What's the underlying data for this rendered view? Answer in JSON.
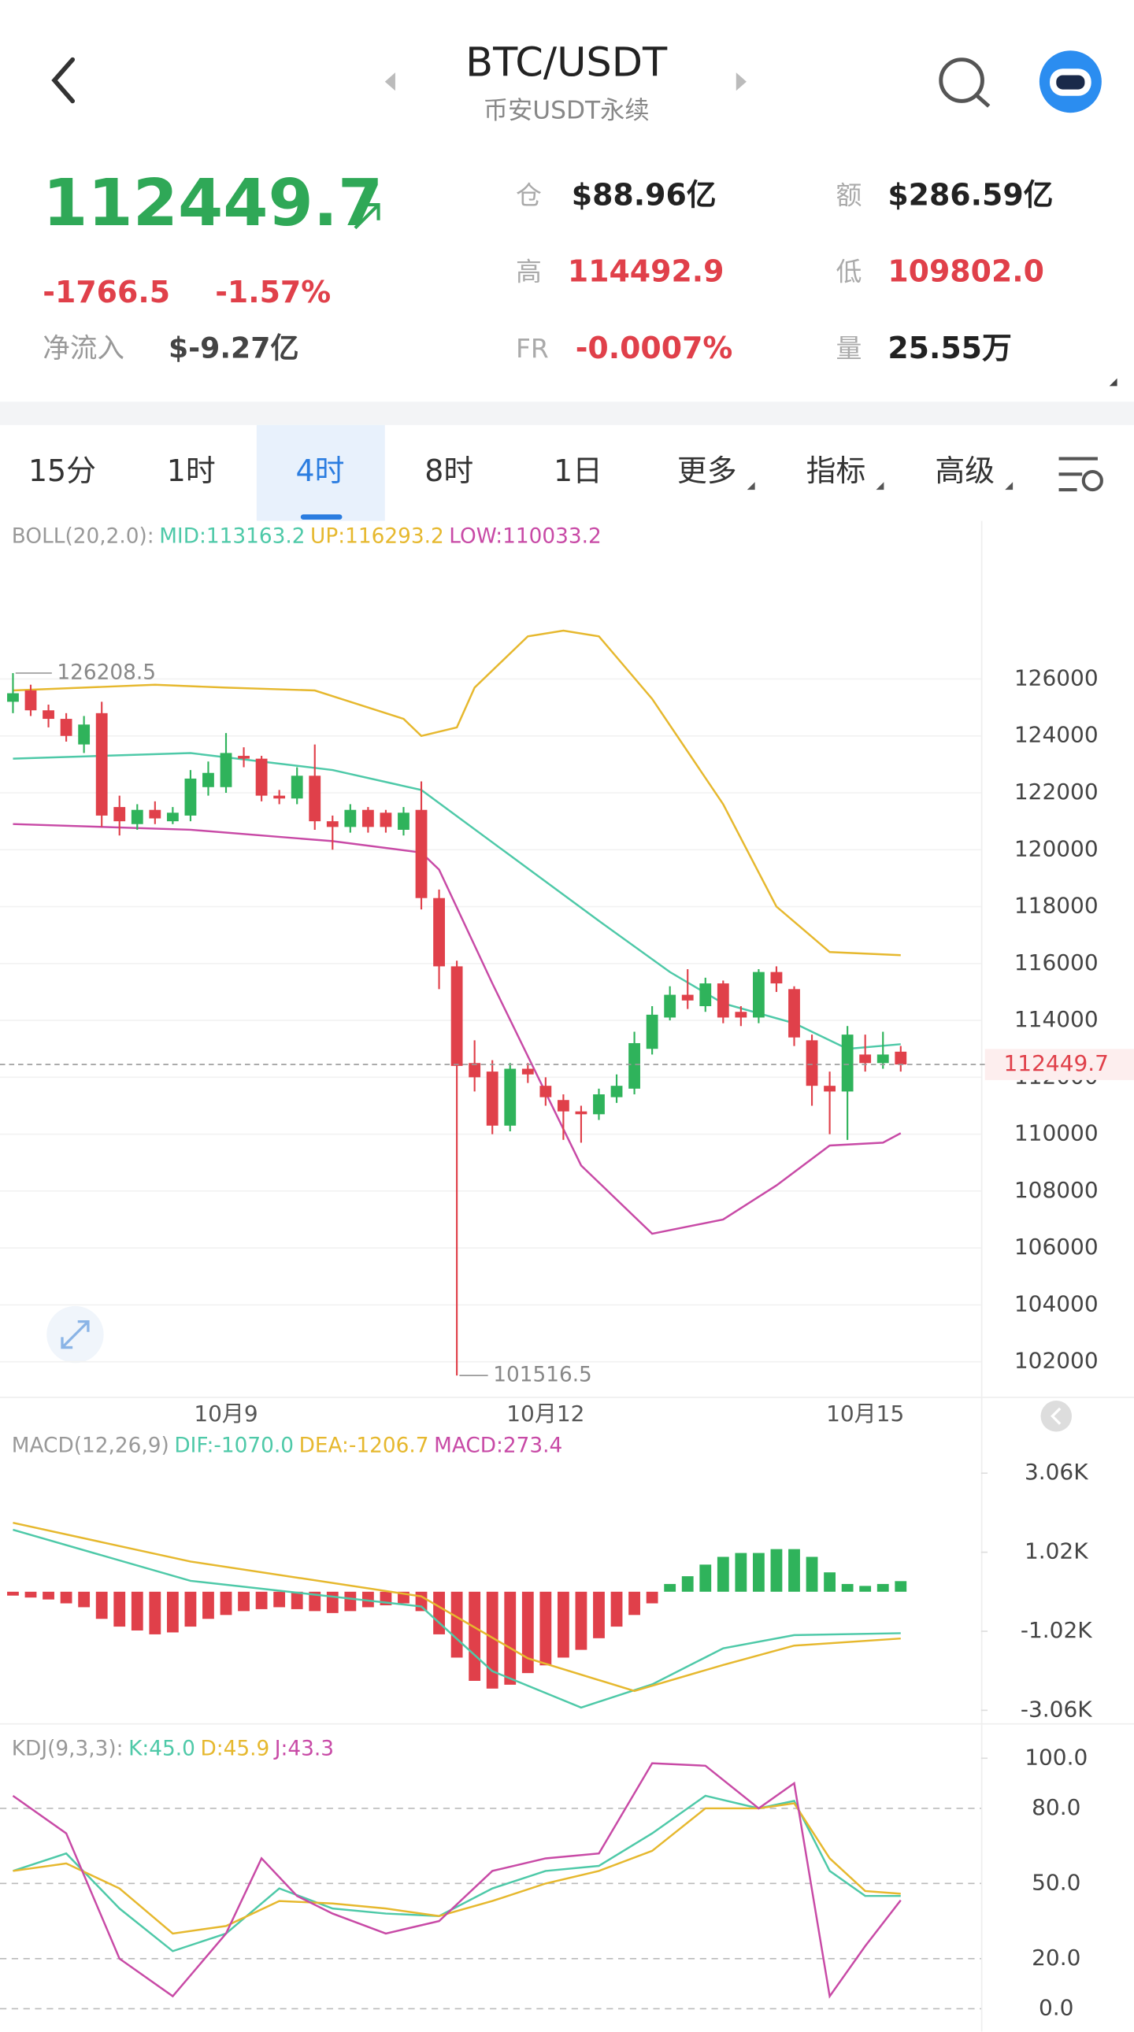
{
  "header": {
    "title": "BTC/USDT",
    "subtitle": "币安USDT永续"
  },
  "ticker": {
    "price": "112449.7",
    "change": "-1766.5",
    "change_pct": "-1.57%",
    "net_inflow_label": "净流入",
    "net_inflow": "$-9.27亿",
    "stats": [
      {
        "label": "仓",
        "value": "$88.96亿"
      },
      {
        "label": "额",
        "value": "$286.59亿"
      },
      {
        "label": "高",
        "value": "114492.9"
      },
      {
        "label": "低",
        "value": "109802.0"
      },
      {
        "label": "FR",
        "value": "-0.0007%"
      },
      {
        "label": "量",
        "value": "25.55万"
      }
    ]
  },
  "tabs": [
    {
      "label": "15分"
    },
    {
      "label": "1时"
    },
    {
      "label": "4时",
      "active": true
    },
    {
      "label": "8时"
    },
    {
      "label": "1日"
    },
    {
      "label": "更多"
    },
    {
      "label": "指标"
    },
    {
      "label": "高级"
    }
  ],
  "chart_data": [
    {
      "type": "candlestick",
      "indicator": "BOLL(20,2.0):",
      "up_color": "#2fb35b",
      "down_color": "#e0404a",
      "categories": [
        null,
        null,
        null,
        null,
        null,
        null,
        null,
        null,
        null,
        null,
        null,
        null,
        "10月9",
        null,
        null,
        null,
        null,
        null,
        null,
        null,
        null,
        null,
        null,
        null,
        null,
        null,
        null,
        null,
        null,
        null,
        "10月12",
        null,
        null,
        null,
        null,
        null,
        null,
        null,
        null,
        null,
        null,
        null,
        null,
        null,
        null,
        null,
        null,
        null,
        "10月15",
        null,
        null
      ],
      "open": [
        125200,
        125600,
        124900,
        124600,
        123700,
        124800,
        121500,
        120900,
        121400,
        121000,
        121200,
        122200,
        122200,
        123300,
        123200,
        121900,
        121800,
        122600,
        121000,
        120800,
        121400,
        121300,
        120700,
        121400,
        118300,
        115900,
        112500,
        112200,
        110300,
        112300,
        111700,
        111200,
        110800,
        110700,
        111300,
        111600,
        113000,
        114100,
        114900,
        114500,
        115300,
        114300,
        114100,
        115700,
        115100,
        113300,
        111700,
        111500,
        112800,
        112500,
        112900
      ],
      "high": [
        126208.5,
        125800,
        125100,
        124800,
        124700,
        125200,
        121900,
        121600,
        121700,
        121500,
        122800,
        123100,
        124100,
        123600,
        123300,
        122100,
        122900,
        123700,
        121200,
        121600,
        121500,
        121400,
        121500,
        122400,
        118600,
        116100,
        113300,
        112600,
        112500,
        112500,
        112000,
        111400,
        111000,
        111600,
        112100,
        113600,
        114500,
        115200,
        115800,
        115500,
        115400,
        114500,
        115800,
        115900,
        115200,
        113500,
        112200,
        113800,
        113500,
        113600,
        113100
      ],
      "low": [
        124800,
        124700,
        124300,
        123800,
        123400,
        120800,
        120500,
        120700,
        120900,
        120900,
        121000,
        121900,
        122000,
        122900,
        121700,
        121600,
        121600,
        120700,
        120000,
        120600,
        120600,
        120600,
        120500,
        117900,
        115100,
        101516.5,
        111500,
        110000,
        110100,
        111800,
        111000,
        109800,
        109700,
        110500,
        111100,
        111400,
        112800,
        114000,
        114400,
        114300,
        113900,
        113800,
        113900,
        115000,
        113100,
        111000,
        110000,
        109800,
        112200,
        112300,
        112200
      ],
      "close": [
        125500,
        124900,
        124600,
        124000,
        124400,
        121200,
        121000,
        121400,
        121100,
        121300,
        122500,
        122700,
        123400,
        123200,
        121900,
        121800,
        122600,
        121000,
        120800,
        121400,
        120800,
        120800,
        121300,
        118300,
        115900,
        112400,
        112000,
        110300,
        112300,
        112100,
        111300,
        110800,
        110700,
        111400,
        111700,
        113200,
        114200,
        114900,
        114700,
        115300,
        114100,
        114100,
        115700,
        115300,
        113400,
        111700,
        111500,
        113500,
        112500,
        112800,
        112449.7
      ],
      "series": [
        {
          "label": "MID:113163.2",
          "color": "#4ec9a8",
          "x": [
            0,
            10,
            18,
            23,
            28,
            33,
            37,
            40,
            44,
            47,
            50
          ],
          "values": [
            123200,
            123400,
            122800,
            122100,
            119800,
            117500,
            115700,
            114600,
            113900,
            113000,
            113163.2
          ]
        },
        {
          "label": "UP:116293.2",
          "color": "#e6b82e",
          "x": [
            0,
            8,
            12,
            17,
            22,
            23,
            25,
            26,
            29,
            31,
            33,
            36,
            40,
            43,
            46,
            50
          ],
          "values": [
            125600,
            125800,
            125700,
            125600,
            124600,
            124000,
            124300,
            125700,
            127500,
            127700,
            127500,
            125300,
            121600,
            118000,
            116400,
            116293.2
          ]
        },
        {
          "label": "LOW:110033.2",
          "color": "#c84aa6",
          "x": [
            0,
            10,
            18,
            23,
            24,
            27,
            32,
            36,
            40,
            43,
            46,
            49,
            50
          ],
          "values": [
            120900,
            120700,
            120300,
            119900,
            119300,
            115300,
            108900,
            106500,
            107000,
            108200,
            109600,
            109700,
            110033.2
          ]
        }
      ],
      "ylim": [
        100770,
        131560
      ],
      "yticks": [
        102000,
        104000,
        106000,
        108000,
        110000,
        112000,
        114000,
        116000,
        118000,
        120000,
        122000,
        124000,
        126000
      ],
      "grid": true
    },
    {
      "type": "bar",
      "indicator": "MACD(12,26,9)",
      "up_color": "#2fb35b",
      "down_color": "#e0404a",
      "x": [
        0,
        1,
        2,
        3,
        4,
        5,
        6,
        7,
        8,
        9,
        10,
        11,
        12,
        13,
        14,
        15,
        16,
        17,
        18,
        19,
        20,
        21,
        22,
        23,
        24,
        25,
        26,
        27,
        28,
        29,
        30,
        31,
        32,
        33,
        34,
        35,
        36,
        37,
        38,
        39,
        40,
        41,
        42,
        43,
        44,
        45,
        46,
        47,
        48,
        49,
        50
      ],
      "values": [
        -100,
        -150,
        -200,
        -300,
        -400,
        -700,
        -900,
        -1000,
        -1100,
        -1050,
        -900,
        -700,
        -600,
        -500,
        -450,
        -400,
        -450,
        -500,
        -550,
        -500,
        -400,
        -350,
        -300,
        -500,
        -1100,
        -1700,
        -2300,
        -2500,
        -2400,
        -2100,
        -1900,
        -1700,
        -1500,
        -1200,
        -900,
        -600,
        -300,
        200,
        400,
        700,
        900,
        1000,
        1000,
        1100,
        1100,
        900,
        500,
        200,
        150,
        200,
        273.4
      ],
      "series": [
        {
          "label": "DIF:-1070.0",
          "color": "#4ec9a8",
          "x": [
            0,
            10,
            23,
            27,
            32,
            36,
            40,
            44,
            50
          ],
          "values": [
            1600,
            280,
            -380,
            -2050,
            -2990,
            -2390,
            -1460,
            -1120,
            -1070
          ]
        },
        {
          "label": "DEA:-1206.7",
          "color": "#e6b82e",
          "x": [
            0,
            10,
            23,
            29,
            35,
            40,
            44,
            50
          ],
          "values": [
            1780,
            780,
            -120,
            -1720,
            -2560,
            -1890,
            -1390,
            -1206.7
          ]
        }
      ],
      "value_label": "MACD:273.4",
      "value_label_color": "#c84aa6",
      "ylim": [
        -3394,
        4130
      ],
      "yticks": [
        {
          "value": -3060,
          "label": "-3.06K"
        },
        {
          "value": -1020,
          "label": "-1.02K"
        },
        {
          "value": 1020,
          "label": "1.02K"
        },
        {
          "value": 3060,
          "label": "3.06K"
        }
      ]
    },
    {
      "type": "line",
      "indicator": "KDJ(9,3,3):",
      "series": [
        {
          "label": "K:45.0",
          "color": "#4ec9a8",
          "x": [
            0,
            3,
            6,
            9,
            12,
            15,
            18,
            21,
            24,
            27,
            30,
            33,
            36,
            39,
            42,
            44,
            46,
            48,
            50
          ],
          "values": [
            55,
            62,
            40,
            23,
            30,
            48,
            40,
            38,
            37,
            48,
            55,
            57,
            70,
            85,
            80,
            83,
            55,
            45,
            45
          ]
        },
        {
          "label": "D:45.9",
          "color": "#e6b82e",
          "x": [
            0,
            3,
            6,
            9,
            12,
            15,
            18,
            21,
            24,
            27,
            30,
            33,
            36,
            39,
            42,
            44,
            46,
            48,
            50
          ],
          "values": [
            55,
            58,
            48,
            30,
            33,
            43,
            42,
            40,
            37,
            43,
            50,
            55,
            63,
            80,
            80,
            82,
            60,
            47,
            45.9
          ]
        },
        {
          "label": "J:43.3",
          "color": "#c84aa6",
          "x": [
            0,
            3,
            6,
            9,
            12,
            14,
            16,
            18,
            21,
            24,
            27,
            30,
            33,
            36,
            39,
            42,
            44,
            46,
            48,
            50
          ],
          "values": [
            85,
            70,
            20,
            5,
            30,
            60,
            45,
            38,
            30,
            35,
            55,
            60,
            62,
            98,
            97,
            80,
            90,
            5,
            25,
            43.3
          ]
        }
      ],
      "ylim": [
        -9.3,
        108.8
      ],
      "yticks": [
        {
          "value": 0,
          "label": "0.0"
        },
        {
          "value": 20,
          "label": "20.0"
        },
        {
          "value": 50,
          "label": "50.0"
        },
        {
          "value": 80,
          "label": "80.0"
        },
        {
          "value": 100,
          "label": "100.0"
        }
      ]
    }
  ]
}
